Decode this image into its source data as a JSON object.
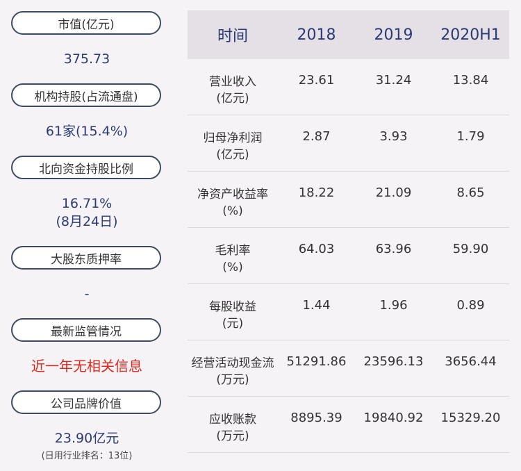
{
  "left_panel": {
    "items": [
      {
        "label": "市值(亿元)",
        "value": "375.73"
      },
      {
        "label": "机构持股(占流通盘)",
        "value": "61家(15.4%)"
      },
      {
        "label": "北向资金持股比例",
        "value": "16.71%",
        "value2": "(8月24日)"
      },
      {
        "label": "大股东质押率",
        "value": "-"
      },
      {
        "label": "最新监管情况",
        "value": "近一年无相关信息"
      },
      {
        "label": "公司品牌价值",
        "value": "23.90亿元",
        "note": "(日用行业排名：13位)"
      }
    ]
  },
  "table": {
    "headers": [
      "时间",
      "2018",
      "2019",
      "2020H1"
    ],
    "rows": [
      {
        "label": "营业收入",
        "unit": "(亿元)",
        "values": [
          "23.61",
          "31.24",
          "13.84"
        ]
      },
      {
        "label": "归母净利润",
        "unit": "(亿元)",
        "values": [
          "2.87",
          "3.93",
          "1.79"
        ]
      },
      {
        "label": "净资产收益率",
        "unit": "(%)",
        "values": [
          "18.22",
          "21.09",
          "8.65"
        ]
      },
      {
        "label": "毛利率",
        "unit": "(%)",
        "values": [
          "64.03",
          "63.96",
          "59.90"
        ]
      },
      {
        "label": "每股收益",
        "unit": "(元)",
        "values": [
          "1.44",
          "1.96",
          "0.89"
        ]
      },
      {
        "label": "经营活动现金流",
        "unit": "(万元)",
        "values": [
          "51291.86",
          "23596.13",
          "3656.44"
        ]
      },
      {
        "label": "应收账款",
        "unit": "(万元)",
        "values": [
          "8895.39",
          "19840.92",
          "15329.20"
        ]
      }
    ]
  }
}
